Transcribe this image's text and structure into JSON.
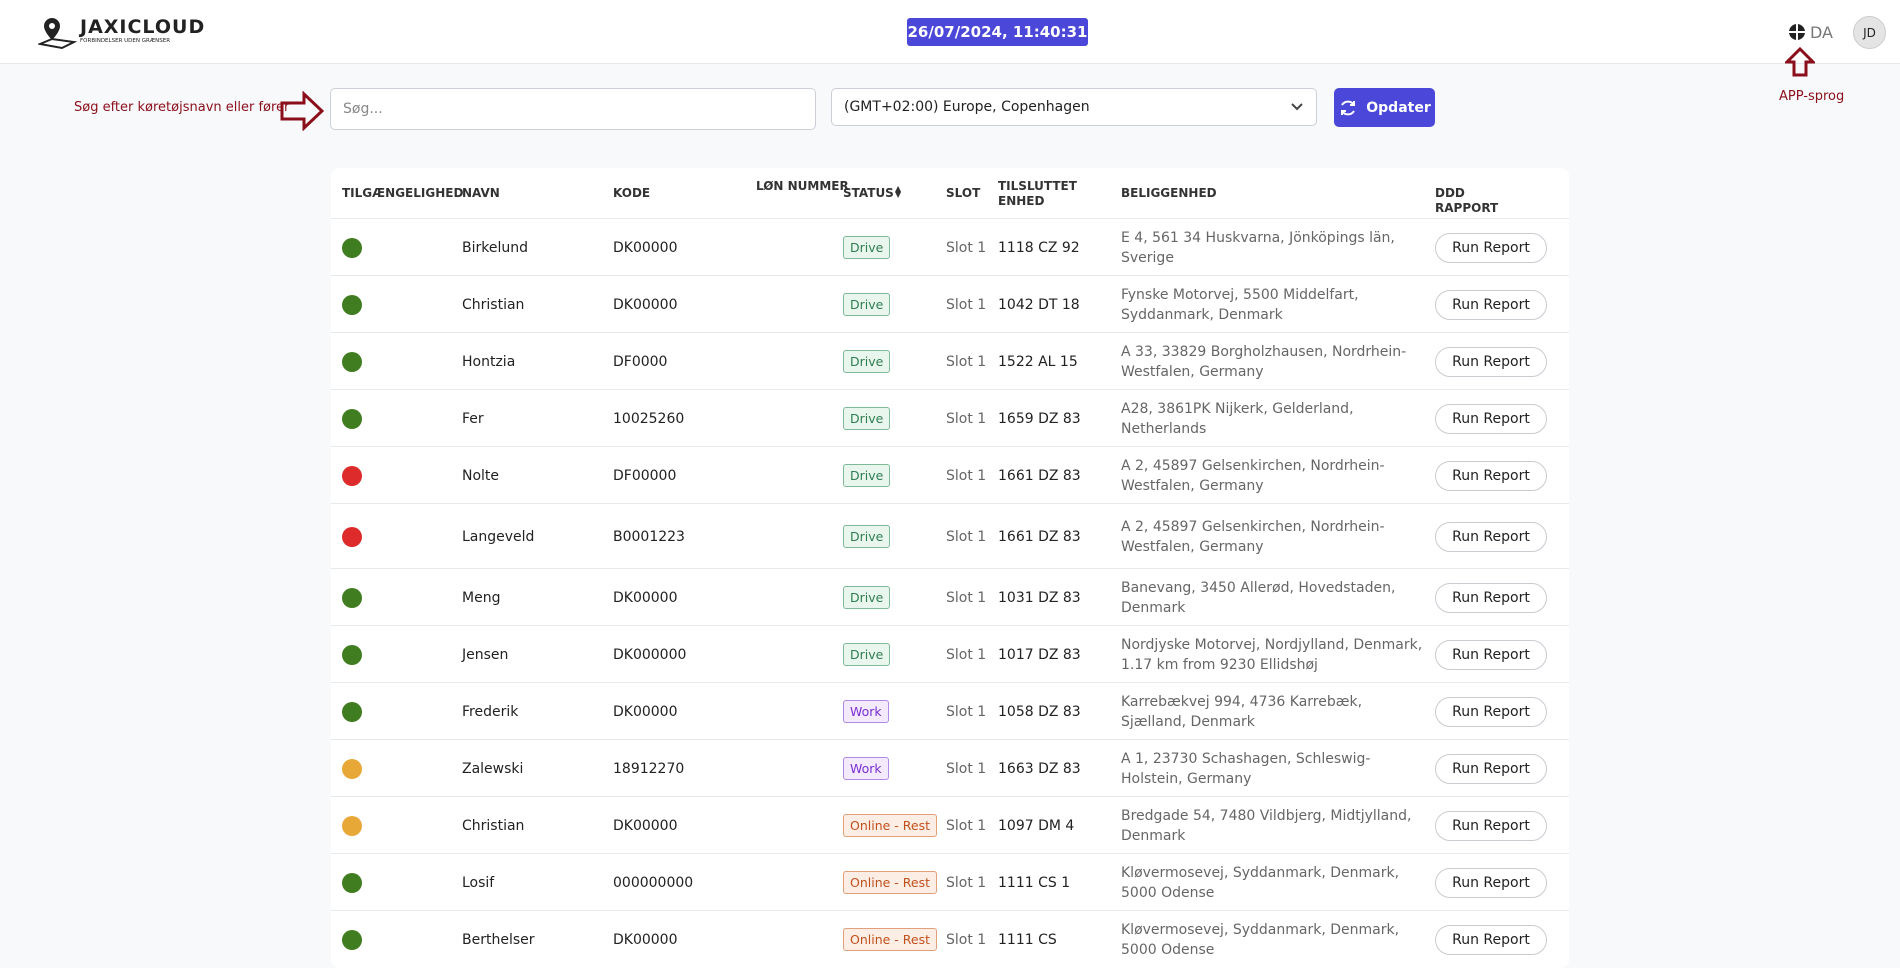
{
  "header": {
    "logo_title": "JAXICLOUD",
    "logo_subtitle": "FORBINDELSER UDEN GRÆNSER",
    "datetime": "26/07/2024, 11:40:31",
    "language": "DA",
    "avatar": "JD"
  },
  "annotations": {
    "search_hint": "Søg efter køretøjsnavn eller fører",
    "language_hint": "APP-sprog"
  },
  "toolbar": {
    "search_placeholder": "Søg...",
    "timezone": "(GMT+02:00) Europe, Copenhagen",
    "refresh": "Opdater"
  },
  "table": {
    "columns": [
      "TILGÆNGELIGHED",
      "NAVN",
      "KODE",
      "LØN NUMMER",
      "STATUS",
      "SLOT",
      "TILSLUTTET ENHED",
      "BELIGGENHED",
      "DDD RAPPORT"
    ],
    "action": "Run Report",
    "rows": [
      {
        "availability": "#3f7d20",
        "name": "Birkelund",
        "code": "DK00000",
        "status": "Drive",
        "status_tone": "green",
        "slot": "Slot 1",
        "unit": "1118 CZ 92",
        "location": "E 4, 561 34 Huskvarna, Jönköpings län, Sverige"
      },
      {
        "availability": "#3f7d20",
        "name": "Christian",
        "code": "DK00000",
        "status": "Drive",
        "status_tone": "green",
        "slot": "Slot 1",
        "unit": "1042 DT 18",
        "location": "Fynske Motorvej, 5500 Middelfart, Syddanmark, Denmark"
      },
      {
        "availability": "#3f7d20",
        "name": "Hontzia",
        "code": "DF0000",
        "status": "Drive",
        "status_tone": "green",
        "slot": "Slot 1",
        "unit": "1522 AL 15",
        "location": "A 33, 33829 Borgholzhausen, Nordrhein-Westfalen, Germany"
      },
      {
        "availability": "#3f7d20",
        "name": "Fer",
        "code": "10025260",
        "status": "Drive",
        "status_tone": "green",
        "slot": "Slot 1",
        "unit": "1659 DZ 83",
        "location": "A28, 3861PK Nijkerk, Gelderland, Netherlands"
      },
      {
        "availability": "#dd2a2a",
        "name": "Nolte",
        "code": "DF00000",
        "status": "Drive",
        "status_tone": "green",
        "slot": "Slot 1",
        "unit": "1661 DZ 83",
        "location": "A 2, 45897 Gelsenkirchen, Nordrhein-Westfalen, Germany"
      },
      {
        "availability": "#dd2a2a",
        "name": "Langeveld",
        "code": "B0001223",
        "status": "Drive",
        "status_tone": "green",
        "slot": "Slot 1",
        "unit": "1661 DZ 83",
        "location": "A 2, 45897 Gelsenkirchen, Nordrhein-Westfalen, Germany"
      },
      {
        "availability": "#3f7d20",
        "name": "Meng",
        "code": "DK00000",
        "status": "Drive",
        "status_tone": "green",
        "slot": "Slot 1",
        "unit": "1031 DZ 83",
        "location": "Banevang, 3450 Allerød, Hovedstaden, Denmark"
      },
      {
        "availability": "#3f7d20",
        "name": "Jensen",
        "code": "DK000000",
        "status": "Drive",
        "status_tone": "green",
        "slot": "Slot 1",
        "unit": "1017 DZ 83",
        "location": "Nordjyske Motorvej, Nordjylland, Denmark, 1.17 km from 9230 Ellidshøj"
      },
      {
        "availability": "#3f7d20",
        "name": "Frederik",
        "code": "DK00000",
        "status": "Work",
        "status_tone": "purple",
        "slot": "Slot 1",
        "unit": "1058 DZ 83",
        "location": "Karrebækvej 994, 4736 Karrebæk, Sjælland, Denmark"
      },
      {
        "availability": "#e8a838",
        "name": "Zalewski",
        "code": "18912270",
        "status": "Work",
        "status_tone": "purple",
        "slot": "Slot 1",
        "unit": "1663 DZ 83",
        "location": "A 1, 23730 Schashagen, Schleswig-Holstein, Germany"
      },
      {
        "availability": "#e8a838",
        "name": "Christian",
        "code": "DK00000",
        "status": "Online - Rest",
        "status_tone": "orange",
        "slot": "Slot 1",
        "unit": "1097 DM 4",
        "location": "Bredgade 54, 7480 Vildbjerg, Midtjylland, Denmark"
      },
      {
        "availability": "#3f7d20",
        "name": "Losif",
        "code": "000000000",
        "status": "Online - Rest",
        "status_tone": "orange",
        "slot": "Slot 1",
        "unit": "1111 CS 1",
        "location": "Kløvermosevej, Syddanmark, Denmark, 5000 Odense"
      },
      {
        "availability": "#3f7d20",
        "name": "Berthelser",
        "code": "DK00000",
        "status": "Online - Rest",
        "status_tone": "orange",
        "slot": "Slot 1",
        "unit": "1111 CS",
        "location": "Kløvermosevej, Syddanmark, Denmark, 5000 Odense"
      }
    ]
  }
}
